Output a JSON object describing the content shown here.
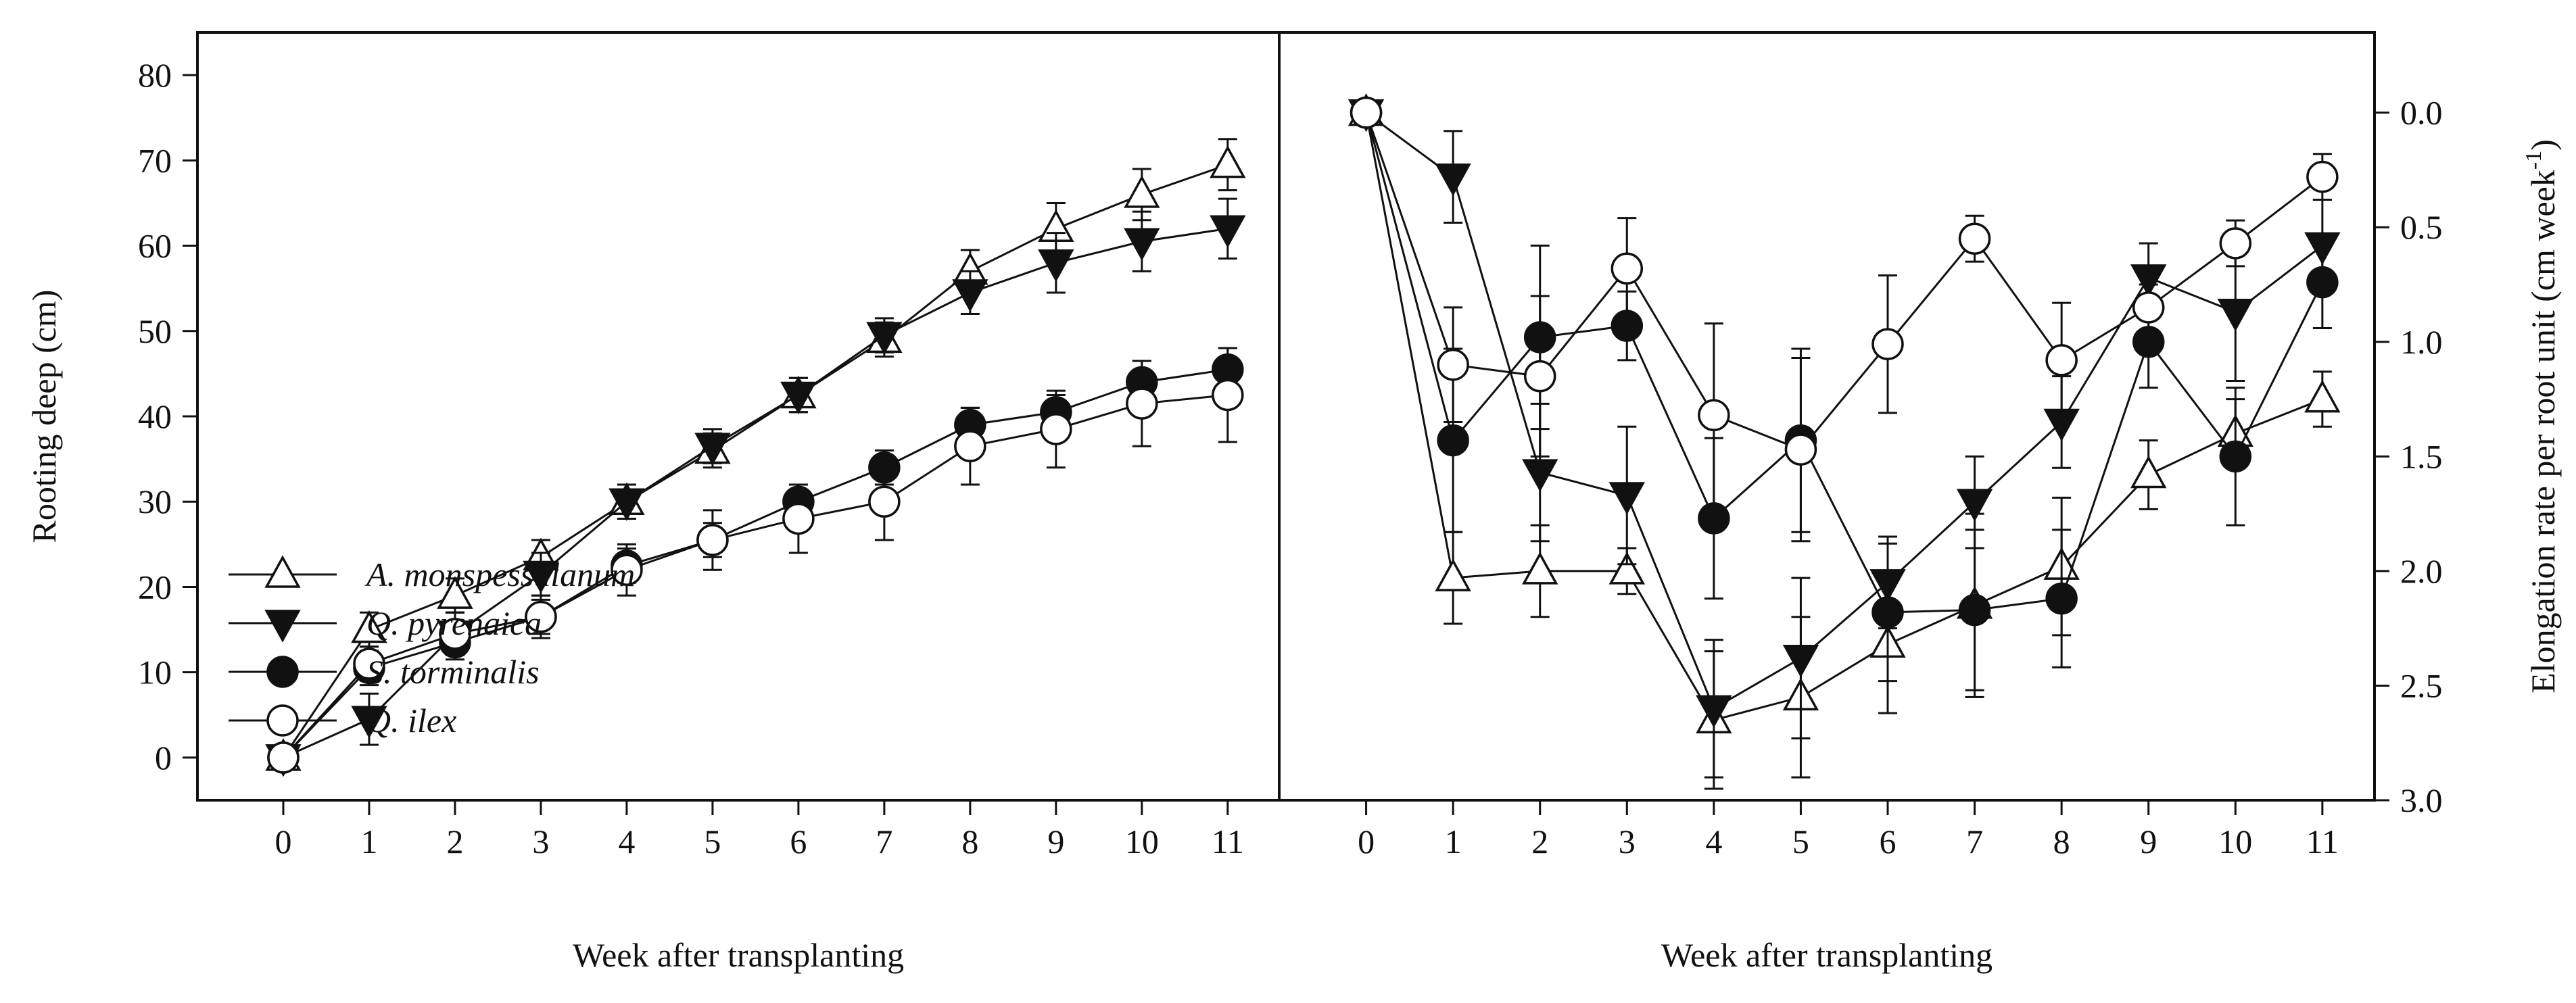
{
  "chart_data": [
    {
      "type": "line",
      "panel": "left",
      "xlabel": "Week after transplanting",
      "ylabel": "Rooting deep (cm)",
      "x": [
        0,
        1,
        2,
        3,
        4,
        5,
        6,
        7,
        8,
        9,
        10,
        11
      ],
      "xlim": [
        -1,
        11.6
      ],
      "ylim": [
        85,
        -5
      ],
      "yticks": [
        0,
        10,
        20,
        30,
        40,
        50,
        60,
        70,
        80
      ],
      "y_inverted": true,
      "legend_position": "bottom-left",
      "series": [
        {
          "name": "A. monspessulanum",
          "marker": "triangle-up-open",
          "values": [
            0,
            15,
            19,
            23.5,
            30,
            36,
            42.5,
            49,
            57,
            62,
            66,
            69.5
          ],
          "errors": [
            0,
            2,
            2,
            2,
            2,
            2,
            2,
            2,
            2.5,
            3,
            3,
            3
          ]
        },
        {
          "name": "Q. pyrenaica",
          "marker": "triangle-down-filled",
          "values": [
            0,
            4.5,
            14.5,
            21.5,
            30,
            36.5,
            42.5,
            49.5,
            54.5,
            58,
            60.5,
            62
          ],
          "errors": [
            0,
            3,
            2.5,
            2.5,
            2,
            2,
            2,
            2,
            2.5,
            3.5,
            3.5,
            3.5
          ]
        },
        {
          "name": "S. torminalis",
          "marker": "circle-filled",
          "values": [
            0,
            10.5,
            13.5,
            16.5,
            22.5,
            25.5,
            30,
            34,
            39,
            40.5,
            44,
            45.5
          ],
          "errors": [
            0,
            2,
            2,
            2,
            2,
            2,
            2,
            2,
            2,
            2,
            2.5,
            2.5
          ]
        },
        {
          "name": "Q. ilex",
          "marker": "circle-open",
          "values": [
            0,
            11,
            14.5,
            16.5,
            22,
            25.5,
            28,
            30,
            36.5,
            38.5,
            41.5,
            42.5
          ],
          "errors": [
            0,
            2,
            2.5,
            2.5,
            3,
            3.5,
            4,
            4.5,
            4.5,
            4.5,
            5,
            5.5
          ]
        }
      ]
    },
    {
      "type": "line",
      "panel": "right",
      "xlabel": "Week after transplanting",
      "ylabel": "Elongation rate per root unit (cm week",
      "ylabel_superscript": "-1",
      "ylabel_suffix": ")",
      "x": [
        0,
        1,
        2,
        3,
        4,
        5,
        6,
        7,
        8,
        9,
        10,
        11
      ],
      "xlim": [
        -1,
        11.6
      ],
      "ylim": [
        -0.35,
        3.0
      ],
      "yticks": [
        0.0,
        0.5,
        1.0,
        1.5,
        2.0,
        2.5,
        3.0
      ],
      "series": [
        {
          "name": "A. monspessulanum",
          "marker": "triangle-up-open",
          "values": [
            0,
            2.03,
            2.0,
            2.0,
            2.65,
            2.55,
            2.32,
            2.15,
            1.98,
            1.58,
            1.4,
            1.25
          ],
          "errors": [
            0,
            0.2,
            0.2,
            0.1,
            0.3,
            0.35,
            0.3,
            0.4,
            0.3,
            0.15,
            0.15,
            0.12
          ]
        },
        {
          "name": "Q. pyrenaica",
          "marker": "triangle-down-filled",
          "values": [
            0,
            0.28,
            1.57,
            1.67,
            2.6,
            2.38,
            2.05,
            1.7,
            1.35,
            0.72,
            0.87,
            0.58
          ],
          "errors": [
            0,
            0.2,
            0.3,
            0.3,
            0.3,
            0.35,
            0.2,
            0.2,
            0.2,
            0.15,
            0.3,
            0.2
          ]
        },
        {
          "name": "S. torminalis",
          "marker": "circle-filled",
          "values": [
            0,
            1.43,
            0.98,
            0.93,
            1.77,
            1.43,
            2.18,
            2.17,
            2.12,
            1.0,
            1.5,
            0.74
          ],
          "errors": [
            0,
            0.4,
            0.4,
            0.15,
            0.35,
            0.4,
            0.3,
            0.35,
            0.3,
            0.2,
            0.3,
            0.2
          ]
        },
        {
          "name": "Q. ilex",
          "marker": "circle-open",
          "values": [
            0,
            1.1,
            1.15,
            0.68,
            1.32,
            1.47,
            1.01,
            0.55,
            1.08,
            0.85,
            0.57,
            0.28
          ],
          "errors": [
            0,
            0.25,
            0.35,
            0.22,
            0.4,
            0.4,
            0.3,
            0.1,
            0.25,
            0.1,
            0.1,
            0.1
          ]
        }
      ]
    }
  ]
}
